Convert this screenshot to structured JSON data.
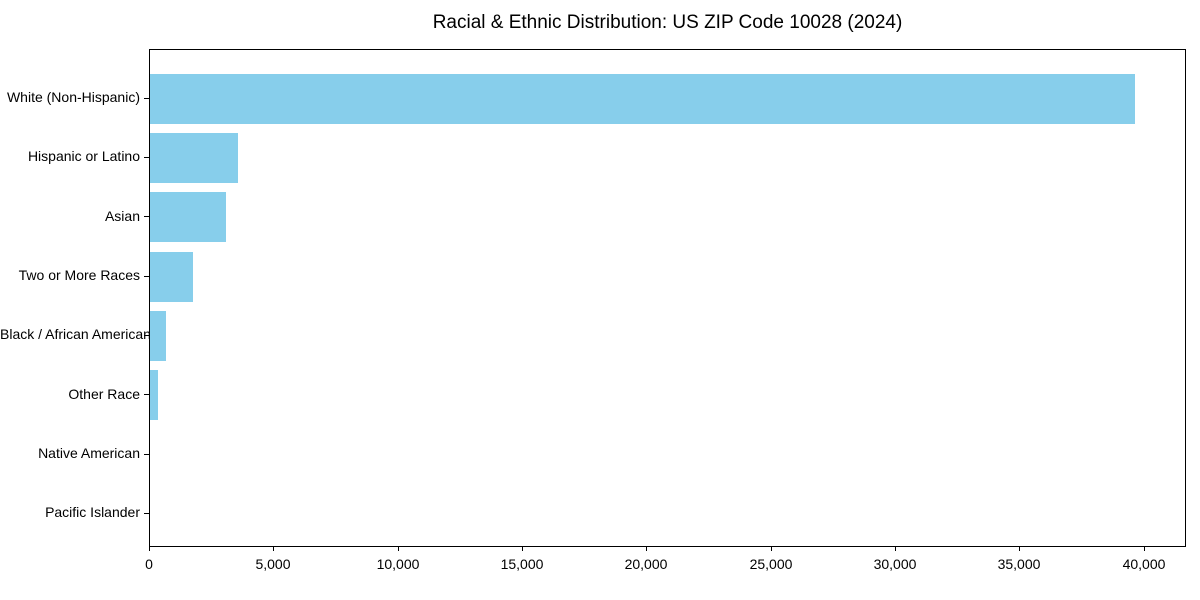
{
  "chart_data": {
    "type": "bar",
    "orientation": "horizontal",
    "title": "Racial & Ethnic Distribution: US ZIP Code 10028 (2024)",
    "categories": [
      "White (Non-Hispanic)",
      "Hispanic or Latino",
      "Asian",
      "Two or More Races",
      "Black / African American",
      "Other Race",
      "Native American",
      "Pacific Islander"
    ],
    "values": [
      39700,
      3540,
      3060,
      1730,
      650,
      340,
      0,
      0
    ],
    "xlabel": "",
    "ylabel": "",
    "xlim": [
      0,
      41700
    ],
    "xticks": [
      0,
      5000,
      10000,
      15000,
      20000,
      25000,
      30000,
      35000,
      40000
    ],
    "xtick_labels": [
      "0",
      "5,000",
      "10,000",
      "15,000",
      "20,000",
      "25,000",
      "30,000",
      "35,000",
      "40,000"
    ],
    "bar_color": "#87CEEB",
    "background_color": "#FFFFFF",
    "spine_color": "#000000",
    "text_color": "#000000",
    "grid": false,
    "legend": null
  }
}
